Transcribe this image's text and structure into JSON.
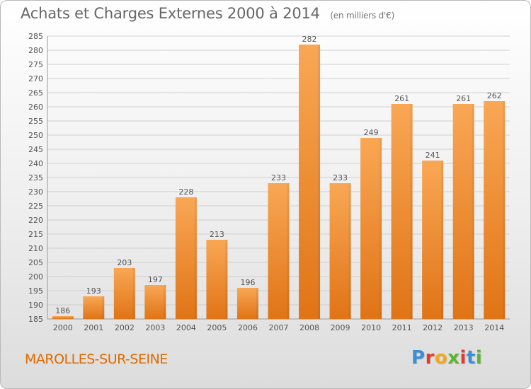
{
  "header": {
    "title": "Achats et Charges Externes 2000 à 2014",
    "unit": "(en milliers d'€)"
  },
  "footer": {
    "place": "MAROLLES-SUR-SEINE",
    "logo": "Proxiti"
  },
  "colors": {
    "bar_light": "#f9a755",
    "bar_dark": "#e07416",
    "grid": "#cfcfcf",
    "text": "#555555",
    "place": "#e06a00"
  },
  "chart_data": {
    "type": "bar",
    "title": "Achats et Charges Externes 2000 à 2014",
    "subtitle": "(en milliers d'€)",
    "categories": [
      "2000",
      "2001",
      "2002",
      "2003",
      "2004",
      "2005",
      "2006",
      "2007",
      "2008",
      "2009",
      "2010",
      "2011",
      "2012",
      "2013",
      "2014"
    ],
    "values": [
      186,
      193,
      203,
      197,
      228,
      213,
      196,
      233,
      282,
      233,
      249,
      261,
      241,
      261,
      262
    ],
    "ylim": [
      185,
      285
    ],
    "yticks": [
      185,
      190,
      195,
      200,
      205,
      210,
      215,
      220,
      225,
      230,
      235,
      240,
      245,
      250,
      255,
      260,
      265,
      270,
      275,
      280,
      285
    ],
    "grid": true,
    "legend": "none"
  }
}
